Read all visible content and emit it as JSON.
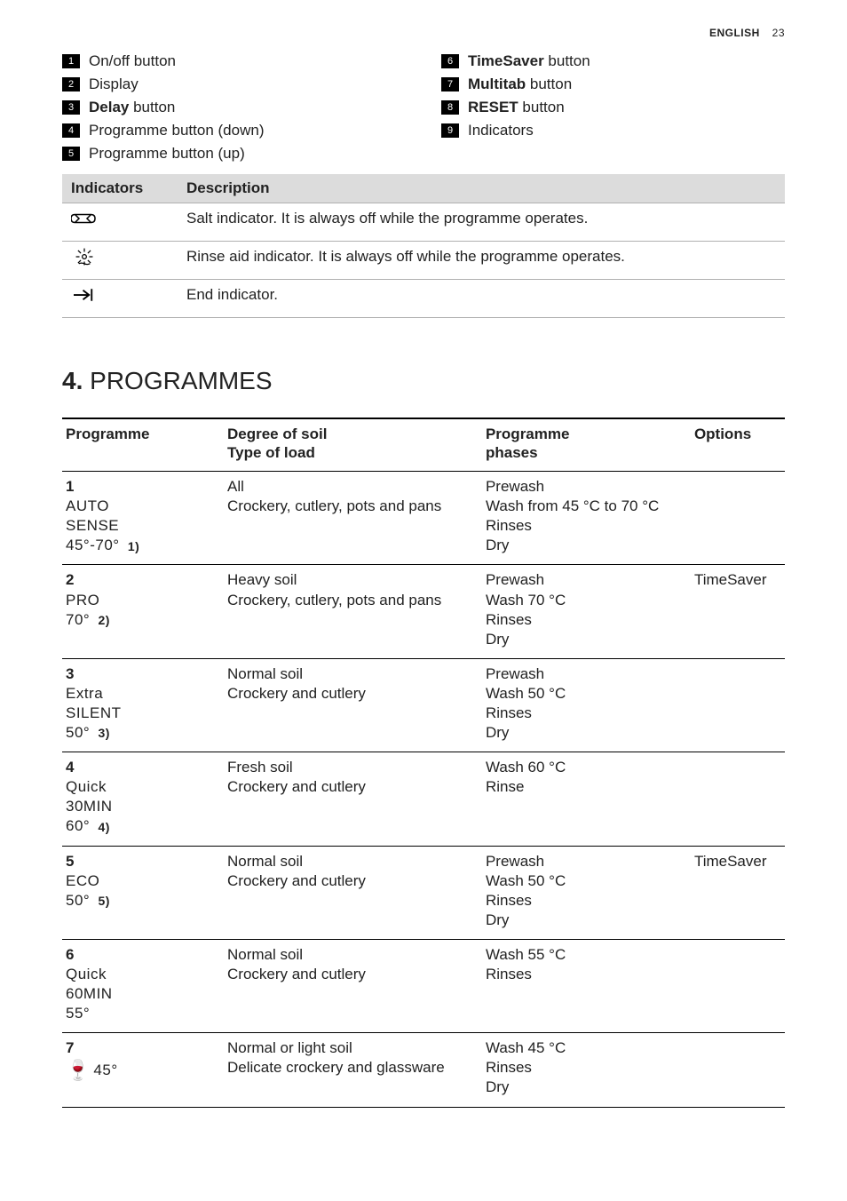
{
  "header": {
    "language": "ENGLISH",
    "page_number": "23"
  },
  "legend": {
    "left": [
      {
        "num": "1",
        "label": "On/off button",
        "bold": ""
      },
      {
        "num": "2",
        "label": "Display",
        "bold": ""
      },
      {
        "num": "3",
        "label": " button",
        "bold": "Delay"
      },
      {
        "num": "4",
        "label": "Programme button (down)",
        "bold": ""
      },
      {
        "num": "5",
        "label": "Programme button (up)",
        "bold": ""
      }
    ],
    "right": [
      {
        "num": "6",
        "label": " button",
        "bold": "TimeSaver"
      },
      {
        "num": "7",
        "label": " button",
        "bold": "Multitab"
      },
      {
        "num": "8",
        "label": " button",
        "bold": "RESET"
      },
      {
        "num": "9",
        "label": "Indicators",
        "bold": ""
      }
    ]
  },
  "indicators_table": {
    "headers": {
      "col1": "Indicators",
      "col2": "Description"
    },
    "rows": [
      {
        "icon": "salt",
        "desc": "Salt indicator. It is always off while the programme operates."
      },
      {
        "icon": "rinse",
        "desc": "Rinse aid indicator. It is always off while the programme operates."
      },
      {
        "icon": "end",
        "desc": "End indicator."
      }
    ]
  },
  "section": {
    "number": "4.",
    "title": "PROGRAMMES"
  },
  "prog_table": {
    "headers": {
      "c1": "Programme",
      "c2a": "Degree of soil",
      "c2b": "Type of load",
      "c3a": "Programme",
      "c3b": "phases",
      "c4": "Options"
    },
    "rows": [
      {
        "num": "1",
        "name_line1": "AUTO",
        "name_line2": "SENSE",
        "name_line3": "45°-70°",
        "footref": "1)",
        "soil": "All\nCrockery, cutlery, pots and pans",
        "phases": "Prewash\nWash from 45 °C to 70 °C\nRinses\nDry",
        "options": ""
      },
      {
        "num": "2",
        "name_line1": "PRO",
        "name_line2": "70°",
        "name_line3": "",
        "footref": "2)",
        "soil": "Heavy soil\nCrockery, cutlery, pots and pans",
        "phases": "Prewash\nWash 70 °C\nRinses\nDry",
        "options": "TimeSaver"
      },
      {
        "num": "3",
        "name_line1": "Extra",
        "name_line2": "SILENT",
        "name_line3": "50°",
        "footref": "3)",
        "soil": "Normal soil\nCrockery and cutlery",
        "phases": "Prewash\nWash 50 °C\nRinses\nDry",
        "options": ""
      },
      {
        "num": "4",
        "name_line1": "Quick",
        "name_line2": "30MIN",
        "name_line3": "60°",
        "footref": "4)",
        "soil": "Fresh soil\nCrockery and cutlery",
        "phases": "Wash 60 °C\nRinse",
        "options": ""
      },
      {
        "num": "5",
        "name_line1": "ECO",
        "name_line2": "50°",
        "name_line3": "",
        "footref": "5)",
        "soil": "Normal soil\nCrockery and cutlery",
        "phases": "Prewash\nWash 50 °C\nRinses\nDry",
        "options": "TimeSaver"
      },
      {
        "num": "6",
        "name_line1": "Quick",
        "name_line2": "60MIN",
        "name_line3": "55°",
        "footref": "",
        "soil": "Normal soil\nCrockery and cutlery",
        "phases": "Wash 55 °C\nRinses",
        "options": ""
      },
      {
        "num": "7",
        "name_line1": "",
        "name_line2": "",
        "name_line3": "",
        "glass_label": "45°",
        "footref": "",
        "soil": "Normal or light soil\nDelicate crockery and glassware",
        "phases": "Wash 45 °C\nRinses\nDry",
        "options": ""
      }
    ]
  }
}
